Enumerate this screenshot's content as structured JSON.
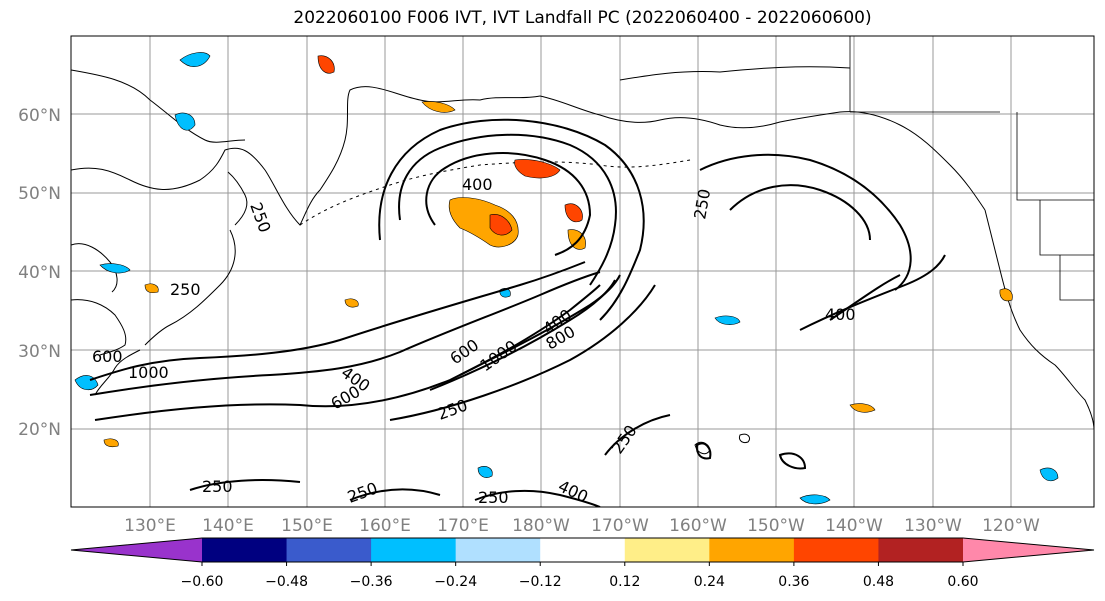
{
  "title": "2022060100 F006 IVT, IVT Landfall PC (2022060400 - 2022060600)",
  "lat_labels": [
    "60°N",
    "50°N",
    "40°N",
    "30°N",
    "20°N"
  ],
  "lon_labels": [
    "130°E",
    "140°E",
    "150°E",
    "160°E",
    "170°E",
    "180°W",
    "170°W",
    "160°W",
    "150°W",
    "140°W",
    "130°W",
    "120°W"
  ],
  "colorbar": {
    "tick_labels": [
      "−0.60",
      "−0.48",
      "−0.36",
      "−0.24",
      "−0.12",
      "0.12",
      "0.24",
      "0.36",
      "0.48",
      "0.60"
    ],
    "colors": [
      "#9933cc",
      "#000080",
      "#3a5bcc",
      "#00bfff",
      "#b0e0ff",
      "#ffffff",
      "#ffee88",
      "#ffa500",
      "#ff4500",
      "#b22222",
      "#ff88aa"
    ]
  },
  "contour_labels": [
    "250",
    "400",
    "250",
    "250",
    "400",
    "600",
    "1000",
    "400",
    "600",
    "600",
    "1000",
    "800",
    "250",
    "250",
    "250",
    "250",
    "400",
    "250",
    "400"
  ]
}
